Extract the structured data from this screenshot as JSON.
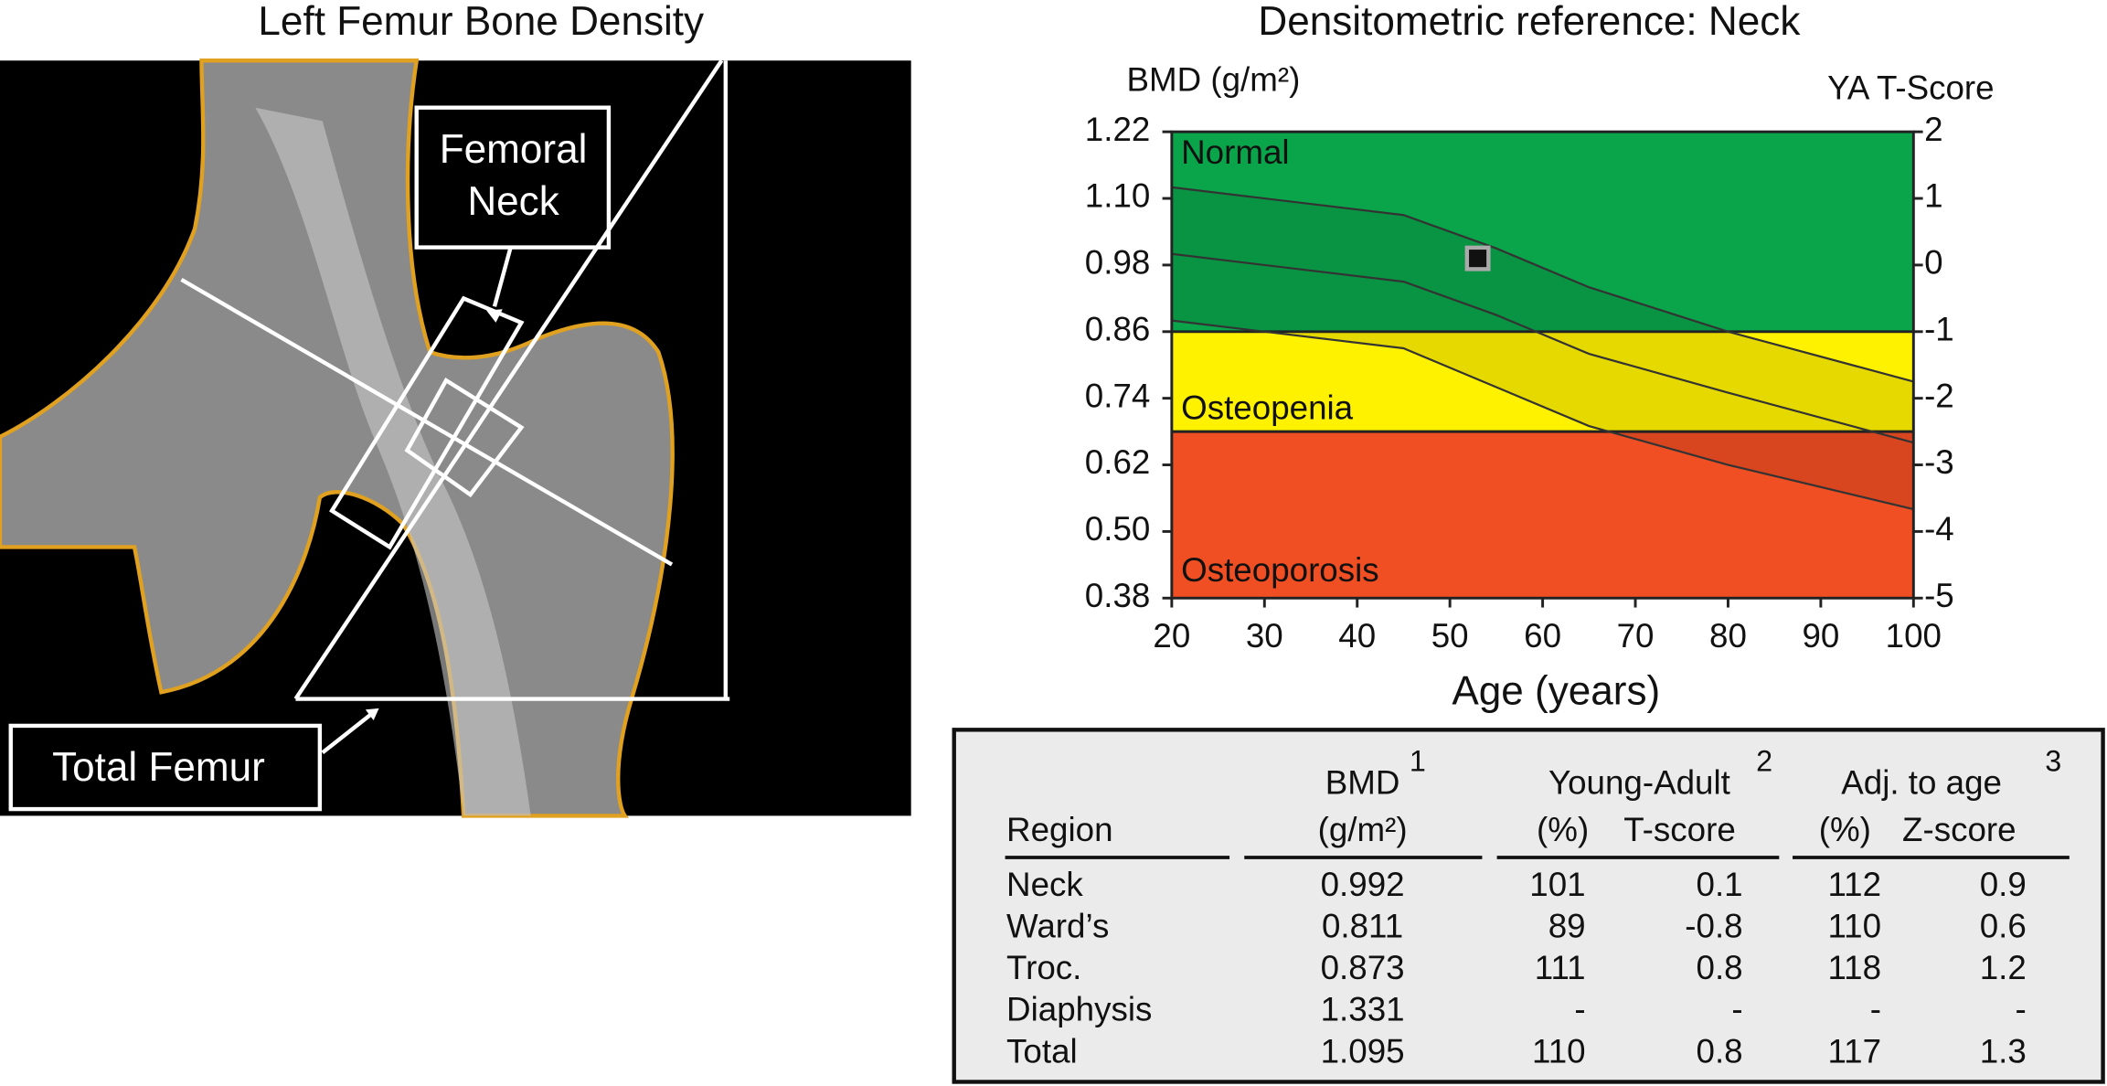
{
  "image": {
    "title": "Left Femur Bone Density",
    "neck_label": [
      "Femoral",
      "Neck"
    ],
    "total_label": "Total Femur"
  },
  "chart_data": {
    "type": "line",
    "title": "Densitometric reference: Neck",
    "y_label": "BMD (g/m²)",
    "y2_label": "YA T-Score",
    "x_label": "Age (years)",
    "xlim": [
      20,
      100
    ],
    "xticks": [
      20,
      30,
      40,
      50,
      60,
      70,
      80,
      90,
      100
    ],
    "ylim": [
      0.38,
      1.22
    ],
    "yticks": [
      0.38,
      {
        "value": 0.5,
        "label": "0.50"
      },
      0.62,
      0.74,
      0.86,
      0.98,
      {
        "value": 1.1,
        "label": "1.10"
      },
      1.22
    ],
    "y2lim": [
      -5,
      2
    ],
    "y2ticks": [
      -5,
      -4,
      -3,
      -2,
      -1,
      0,
      1,
      2
    ],
    "bands": [
      {
        "name": "Normal",
        "from": 0.86,
        "to": 1.22,
        "color": "#0aa54a"
      },
      {
        "name": "Osteopenia",
        "from": 0.68,
        "to": 0.86,
        "color": "#fff200"
      },
      {
        "name": "Osteoporosis",
        "from": 0.38,
        "to": 0.68,
        "color": "#f04e23"
      }
    ],
    "x": [
      20,
      30,
      45,
      55,
      65,
      80,
      100
    ],
    "series": [
      {
        "color": "#333333",
        "values": [
          1.12,
          1.1,
          1.07,
          1.01,
          0.94,
          0.86,
          0.77
        ]
      },
      {
        "color": "#333333",
        "values": [
          1.0,
          0.98,
          0.95,
          0.89,
          0.82,
          0.75,
          0.66
        ]
      },
      {
        "color": "#333333",
        "values": [
          0.88,
          0.86,
          0.83,
          0.76,
          0.69,
          0.62,
          0.54
        ]
      }
    ],
    "patient": {
      "x": 53,
      "y": 0.992
    }
  },
  "table": {
    "group_headers": [
      {
        "label": "BMD",
        "note": "1"
      },
      {
        "label": "Young-Adult",
        "note": "2"
      },
      {
        "label": "Adj. to age",
        "note": "3"
      }
    ],
    "columns": [
      "Region",
      "(g/m²)",
      "(%)",
      "T-score",
      "(%)",
      "Z-score"
    ],
    "rows": [
      [
        "Neck",
        "0.992",
        "101",
        "0.1",
        "112",
        "0.9"
      ],
      [
        "Ward’s",
        "0.811",
        "89",
        "-0.8",
        "110",
        "0.6"
      ],
      [
        "Troc.",
        "0.873",
        "111",
        "0.8",
        "118",
        "1.2"
      ],
      [
        "Diaphysis",
        "1.331",
        "-",
        "-",
        "-",
        "-"
      ],
      [
        "Total",
        "1.095",
        "110",
        "0.8",
        "117",
        "1.3"
      ]
    ]
  }
}
